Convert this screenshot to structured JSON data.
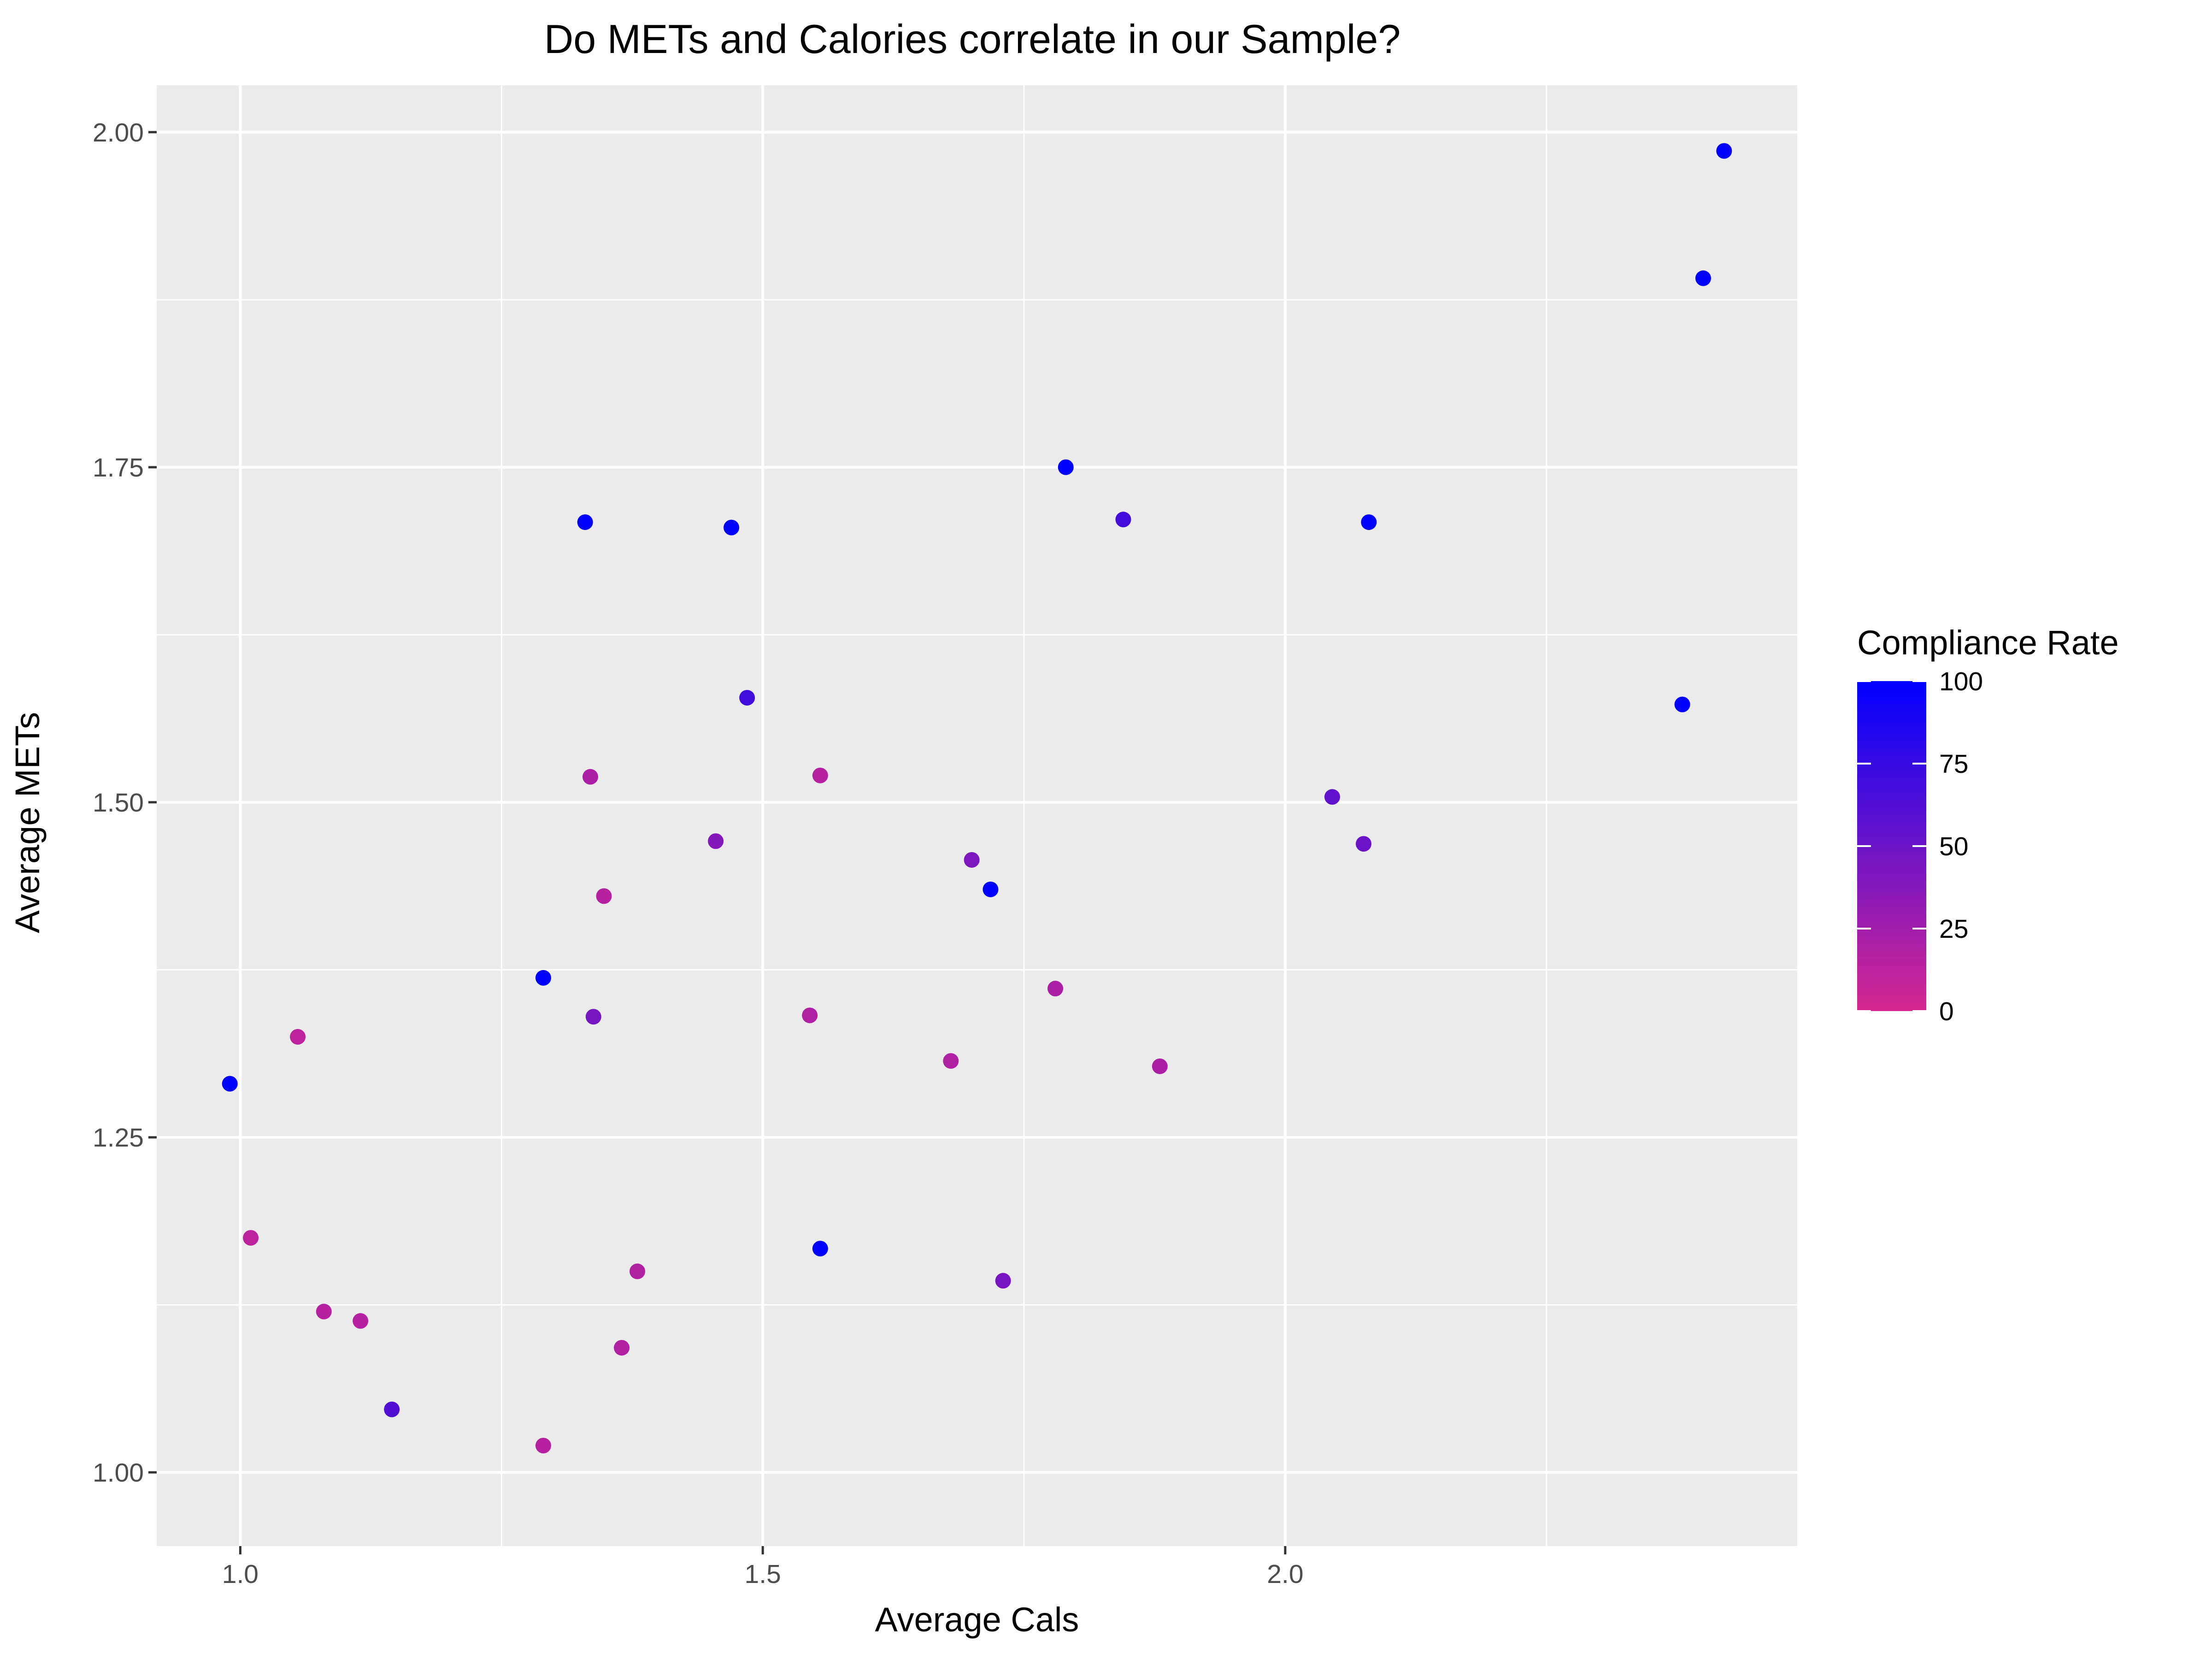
{
  "chart_data": {
    "type": "scatter",
    "title": "Do METs and Calories correlate in our Sample?",
    "xlabel": "Average Cals",
    "ylabel": "Average METs",
    "xlim": [
      0.92,
      2.49
    ],
    "ylim": [
      0.945,
      2.035
    ],
    "x_ticks": [
      1.0,
      1.5,
      2.0
    ],
    "x_tick_labels": [
      "1.0",
      "1.5",
      "2.0"
    ],
    "x_minor_ticks": [
      1.25,
      1.75,
      2.25
    ],
    "y_ticks": [
      1.0,
      1.25,
      1.5,
      1.75,
      2.0
    ],
    "y_tick_labels": [
      "1.00",
      "1.25",
      "1.50",
      "1.75",
      "2.00"
    ],
    "y_minor_ticks": [
      1.125,
      1.375,
      1.625,
      1.875
    ],
    "grid": true,
    "background": "#ebebeb",
    "color_scale": {
      "title": "Compliance Rate",
      "low": 0,
      "high": 100,
      "low_color": "#d6278f",
      "high_color": "#0000ff",
      "ticks": [
        0,
        25,
        50,
        75,
        100
      ],
      "tick_labels": [
        "0",
        "25",
        "50",
        "75",
        "100"
      ],
      "legend_position": "right"
    },
    "points": [
      {
        "x": 0.99,
        "y": 1.29,
        "c": 100
      },
      {
        "x": 1.01,
        "y": 1.175,
        "c": 12
      },
      {
        "x": 1.055,
        "y": 1.325,
        "c": 12
      },
      {
        "x": 1.08,
        "y": 1.12,
        "c": 15
      },
      {
        "x": 1.115,
        "y": 1.113,
        "c": 15
      },
      {
        "x": 1.145,
        "y": 1.047,
        "c": 62
      },
      {
        "x": 1.29,
        "y": 1.369,
        "c": 100
      },
      {
        "x": 1.29,
        "y": 1.02,
        "c": 15
      },
      {
        "x": 1.33,
        "y": 1.709,
        "c": 100
      },
      {
        "x": 1.335,
        "y": 1.519,
        "c": 20
      },
      {
        "x": 1.338,
        "y": 1.34,
        "c": 45
      },
      {
        "x": 1.348,
        "y": 1.43,
        "c": 15
      },
      {
        "x": 1.365,
        "y": 1.093,
        "c": 18
      },
      {
        "x": 1.38,
        "y": 1.15,
        "c": 18
      },
      {
        "x": 1.455,
        "y": 1.471,
        "c": 38
      },
      {
        "x": 1.47,
        "y": 1.705,
        "c": 100
      },
      {
        "x": 1.485,
        "y": 1.578,
        "c": 70
      },
      {
        "x": 1.545,
        "y": 1.341,
        "c": 18
      },
      {
        "x": 1.555,
        "y": 1.52,
        "c": 15
      },
      {
        "x": 1.555,
        "y": 1.167,
        "c": 100
      },
      {
        "x": 1.68,
        "y": 1.307,
        "c": 18
      },
      {
        "x": 1.7,
        "y": 1.457,
        "c": 42
      },
      {
        "x": 1.718,
        "y": 1.435,
        "c": 100
      },
      {
        "x": 1.73,
        "y": 1.143,
        "c": 45
      },
      {
        "x": 1.78,
        "y": 1.361,
        "c": 20
      },
      {
        "x": 1.79,
        "y": 1.75,
        "c": 100
      },
      {
        "x": 1.845,
        "y": 1.711,
        "c": 68
      },
      {
        "x": 1.88,
        "y": 1.303,
        "c": 20
      },
      {
        "x": 2.045,
        "y": 1.504,
        "c": 55
      },
      {
        "x": 2.075,
        "y": 1.469,
        "c": 50
      },
      {
        "x": 2.08,
        "y": 1.709,
        "c": 100
      },
      {
        "x": 2.38,
        "y": 1.573,
        "c": 100
      },
      {
        "x": 2.4,
        "y": 1.891,
        "c": 100
      },
      {
        "x": 2.42,
        "y": 1.986,
        "c": 100
      }
    ]
  }
}
